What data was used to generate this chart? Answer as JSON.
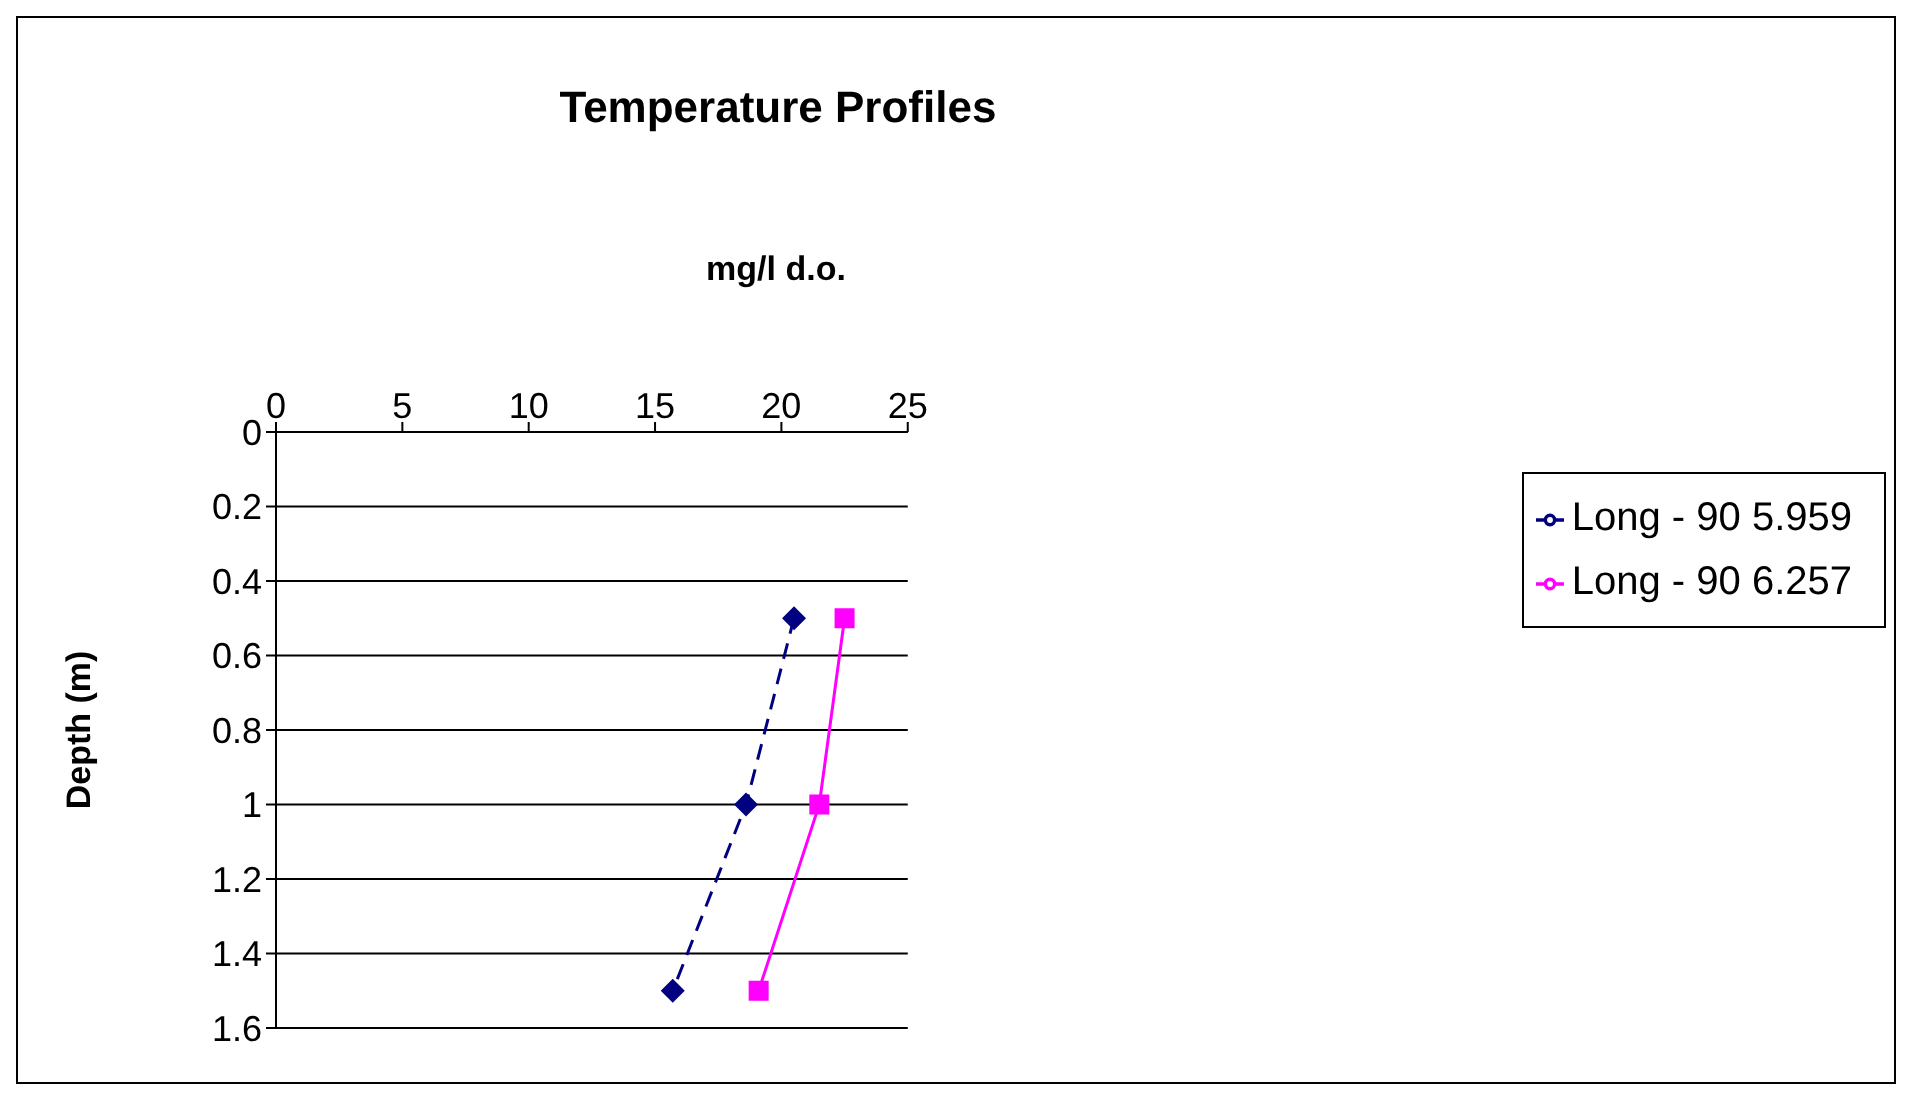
{
  "chart_data": {
    "type": "line",
    "title": "Temperature Profiles",
    "xlabel": "mg/l d.o.",
    "ylabel": "Depth (m)",
    "series": [
      {
        "name": "Long - 90 5.959",
        "color": "#000080",
        "marker": "diamond",
        "line_style": "dashed",
        "x": [
          20.5,
          18.6,
          15.7
        ],
        "values": [
          0.5,
          1,
          1.5
        ]
      },
      {
        "name": "Long - 90 6.257",
        "color": "#ff00ff",
        "marker": "square",
        "line_style": "solid",
        "x": [
          22.5,
          21.5,
          19.1
        ],
        "values": [
          0.5,
          1,
          1.5
        ]
      }
    ],
    "xlim": [
      0,
      25
    ],
    "xticks": [
      0,
      5,
      10,
      15,
      20,
      25
    ],
    "ylim": [
      1.6,
      0
    ],
    "yticks": [
      0,
      0.2,
      0.4,
      0.6,
      0.8,
      1,
      1.2,
      1.4,
      1.6
    ],
    "grid": "y",
    "legend": "right"
  }
}
